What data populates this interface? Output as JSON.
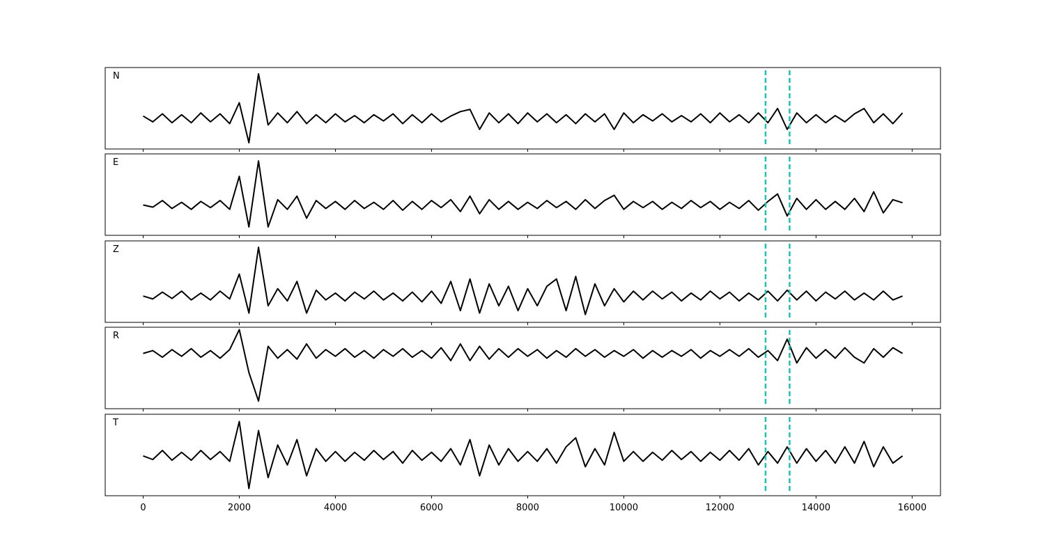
{
  "chart_data": {
    "type": "line",
    "x": [
      0,
      200,
      400,
      600,
      800,
      1000,
      1200,
      1400,
      1600,
      1800,
      2000,
      2200,
      2400,
      2600,
      2800,
      3000,
      3200,
      3400,
      3600,
      3800,
      4000,
      4200,
      4400,
      4600,
      4800,
      5000,
      5200,
      5400,
      5600,
      5800,
      6000,
      6200,
      6400,
      6600,
      6800,
      7000,
      7200,
      7400,
      7600,
      7800,
      8000,
      8200,
      8400,
      8600,
      8800,
      9000,
      9200,
      9400,
      9600,
      9800,
      10000,
      10200,
      10400,
      10600,
      10800,
      11000,
      11200,
      11400,
      11600,
      11800,
      12000,
      12200,
      12400,
      12600,
      12800,
      13000,
      13200,
      13400,
      13600,
      13800,
      14000,
      14200,
      14400,
      14600,
      14800,
      15000,
      15200,
      15400,
      15600,
      15800
    ],
    "xlim": [
      -790,
      16590
    ],
    "xticks": [
      0,
      2000,
      4000,
      6000,
      8000,
      10000,
      12000,
      14000,
      16000
    ],
    "vlines": [
      12950,
      13450
    ],
    "vline_color": "#1cc3b0",
    "series": [
      {
        "name": "N",
        "color": "#000000",
        "ylim": [
          -0.69,
          1.14
        ],
        "values": [
          0.05,
          -0.08,
          0.1,
          -0.1,
          0.08,
          -0.1,
          0.12,
          -0.08,
          0.1,
          -0.12,
          0.35,
          -0.55,
          1.0,
          -0.15,
          0.12,
          -0.1,
          0.15,
          -0.12,
          0.08,
          -0.1,
          0.1,
          -0.08,
          0.06,
          -0.1,
          0.08,
          -0.06,
          0.1,
          -0.12,
          0.08,
          -0.1,
          0.1,
          -0.08,
          0.05,
          0.15,
          0.2,
          -0.25,
          0.12,
          -0.1,
          0.1,
          -0.12,
          0.12,
          -0.08,
          0.1,
          -0.1,
          0.08,
          -0.12,
          0.1,
          -0.08,
          0.1,
          -0.25,
          0.12,
          -0.1,
          0.08,
          -0.06,
          0.1,
          -0.08,
          0.06,
          -0.08,
          0.1,
          -0.1,
          0.12,
          -0.08,
          0.08,
          -0.1,
          0.12,
          -0.1,
          0.22,
          -0.25,
          0.12,
          -0.1,
          0.08,
          -0.1,
          0.06,
          -0.08,
          0.1,
          0.22,
          -0.1,
          0.1,
          -0.12,
          0.12
        ]
      },
      {
        "name": "E",
        "color": "#000000",
        "ylim": [
          -0.69,
          1.16
        ],
        "values": [
          0.0,
          -0.05,
          0.1,
          -0.08,
          0.06,
          -0.1,
          0.08,
          -0.06,
          0.1,
          -0.1,
          0.65,
          -0.5,
          1.0,
          -0.5,
          0.12,
          -0.1,
          0.2,
          -0.3,
          0.1,
          -0.08,
          0.08,
          -0.1,
          0.1,
          -0.08,
          0.06,
          -0.1,
          0.1,
          -0.12,
          0.08,
          -0.1,
          0.1,
          -0.06,
          0.12,
          -0.15,
          0.2,
          -0.2,
          0.12,
          -0.1,
          0.08,
          -0.1,
          0.06,
          -0.08,
          0.1,
          -0.06,
          0.08,
          -0.1,
          0.12,
          -0.08,
          0.1,
          0.22,
          -0.1,
          0.08,
          -0.06,
          0.08,
          -0.1,
          0.06,
          -0.08,
          0.1,
          -0.06,
          0.08,
          -0.1,
          0.06,
          -0.08,
          0.1,
          -0.12,
          0.08,
          0.25,
          -0.25,
          0.15,
          -0.1,
          0.12,
          -0.1,
          0.08,
          -0.1,
          0.15,
          -0.15,
          0.3,
          -0.18,
          0.12,
          0.05
        ]
      },
      {
        "name": "Z",
        "color": "#000000",
        "ylim": [
          -0.54,
          1.13
        ],
        "values": [
          0.0,
          -0.06,
          0.08,
          -0.05,
          0.1,
          -0.08,
          0.06,
          -0.08,
          0.1,
          -0.06,
          0.45,
          -0.35,
          1.0,
          -0.2,
          0.15,
          -0.1,
          0.3,
          -0.35,
          0.12,
          -0.08,
          0.06,
          -0.1,
          0.08,
          -0.06,
          0.1,
          -0.08,
          0.06,
          -0.1,
          0.08,
          -0.12,
          0.1,
          -0.15,
          0.3,
          -0.3,
          0.35,
          -0.35,
          0.25,
          -0.2,
          0.2,
          -0.3,
          0.15,
          -0.2,
          0.2,
          0.35,
          -0.3,
          0.4,
          -0.38,
          0.25,
          -0.2,
          0.15,
          -0.12,
          0.1,
          -0.08,
          0.1,
          -0.06,
          0.08,
          -0.1,
          0.06,
          -0.08,
          0.1,
          -0.06,
          0.08,
          -0.1,
          0.06,
          -0.08,
          0.1,
          -0.1,
          0.12,
          -0.08,
          0.1,
          -0.1,
          0.08,
          -0.06,
          0.1,
          -0.08,
          0.06,
          -0.08,
          0.1,
          -0.08,
          0.0
        ]
      },
      {
        "name": "R",
        "color": "#000000",
        "ylim": [
          -1.16,
          0.55
        ],
        "values": [
          0.0,
          0.06,
          -0.08,
          0.08,
          -0.06,
          0.1,
          -0.08,
          0.06,
          -0.1,
          0.08,
          0.5,
          -0.4,
          -1.0,
          0.15,
          -0.1,
          0.08,
          -0.12,
          0.2,
          -0.1,
          0.08,
          -0.06,
          0.1,
          -0.08,
          0.06,
          -0.1,
          0.08,
          -0.06,
          0.1,
          -0.08,
          0.06,
          -0.1,
          0.12,
          -0.15,
          0.2,
          -0.15,
          0.15,
          -0.12,
          0.1,
          -0.08,
          0.1,
          -0.06,
          0.08,
          -0.1,
          0.06,
          -0.08,
          0.1,
          -0.06,
          0.08,
          -0.08,
          0.06,
          -0.06,
          0.08,
          -0.1,
          0.06,
          -0.08,
          0.06,
          -0.06,
          0.08,
          -0.1,
          0.06,
          -0.06,
          0.08,
          -0.06,
          0.1,
          -0.08,
          0.06,
          -0.15,
          0.3,
          -0.2,
          0.12,
          -0.1,
          0.08,
          -0.1,
          0.12,
          -0.08,
          -0.2,
          0.1,
          -0.08,
          0.12,
          0.0
        ]
      },
      {
        "name": "T",
        "color": "#000000",
        "ylim": [
          -1.1,
          1.15
        ],
        "values": [
          0.0,
          -0.1,
          0.15,
          -0.12,
          0.1,
          -0.12,
          0.15,
          -0.1,
          0.12,
          -0.15,
          0.95,
          -0.9,
          0.7,
          -0.6,
          0.3,
          -0.25,
          0.45,
          -0.55,
          0.2,
          -0.15,
          0.12,
          -0.15,
          0.1,
          -0.12,
          0.15,
          -0.1,
          0.12,
          -0.2,
          0.15,
          -0.12,
          0.1,
          -0.15,
          0.2,
          -0.25,
          0.45,
          -0.55,
          0.3,
          -0.25,
          0.2,
          -0.15,
          0.12,
          -0.15,
          0.2,
          -0.2,
          0.25,
          0.5,
          -0.3,
          0.2,
          -0.25,
          0.65,
          -0.15,
          0.12,
          -0.15,
          0.1,
          -0.12,
          0.15,
          -0.1,
          0.12,
          -0.15,
          0.1,
          -0.12,
          0.15,
          -0.12,
          0.2,
          -0.25,
          0.12,
          -0.2,
          0.25,
          -0.2,
          0.2,
          -0.15,
          0.15,
          -0.2,
          0.25,
          -0.2,
          0.4,
          -0.3,
          0.25,
          -0.2,
          0.0
        ]
      }
    ]
  }
}
